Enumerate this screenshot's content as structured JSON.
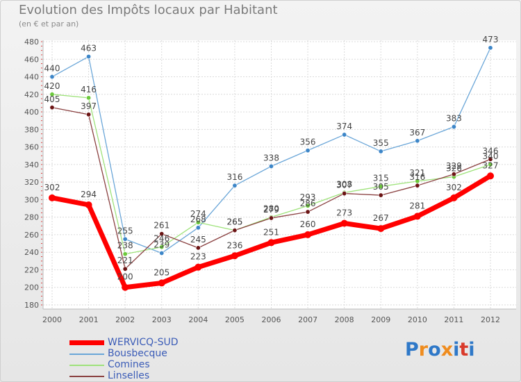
{
  "title": "Evolution des Impôts locaux par Habitant",
  "subtitle": "(en € et par an)",
  "logo": {
    "text": "Proxiti",
    "colors": [
      "#2e78c8",
      "#ef8c1e",
      "#2e78c8",
      "#ef8c1e",
      "#2e78c8",
      "#d93a2b",
      "#2e78c8"
    ]
  },
  "chart_data": {
    "type": "line",
    "title": "Evolution des Impôts locaux par Habitant",
    "subtitle": "(en € et par an)",
    "categories": [
      "2000",
      "2001",
      "2002",
      "2003",
      "2004",
      "2005",
      "2006",
      "2007",
      "2008",
      "2009",
      "2010",
      "2011",
      "2012"
    ],
    "ylim": [
      180,
      480
    ],
    "yticks": [
      180,
      200,
      220,
      240,
      260,
      280,
      300,
      320,
      340,
      360,
      380,
      400,
      420,
      440,
      460,
      480
    ],
    "grid": true,
    "series": [
      {
        "name": "Bousbecque",
        "color": "#6aa6d8",
        "marker": "#3d86c8",
        "width": 1.3,
        "values": [
          440,
          463,
          255,
          239,
          268,
          316,
          338,
          356,
          374,
          355,
          367,
          383,
          473
        ]
      },
      {
        "name": "Comines",
        "color": "#9ee27a",
        "marker": "#6cc93c",
        "width": 1.3,
        "values": [
          420,
          416,
          238,
          246,
          274,
          265,
          280,
          293,
          308,
          315,
          321,
          326,
          340
        ]
      },
      {
        "name": "Linselles",
        "color": "#8a4040",
        "marker": "#6b1414",
        "width": 1.3,
        "values": [
          405,
          397,
          221,
          261,
          245,
          265,
          279,
          286,
          307,
          305,
          316,
          329,
          346
        ]
      },
      {
        "name": "WERVICQ-SUD",
        "color": "#ff0000",
        "marker": "#ff0000",
        "width": 7,
        "values": [
          302,
          294,
          200,
          205,
          223,
          236,
          251,
          260,
          273,
          267,
          281,
          302,
          327
        ]
      }
    ],
    "legend": [
      "WERVICQ-SUD",
      "Bousbecque",
      "Comines",
      "Linselles"
    ],
    "legend_position": "bottom-left"
  }
}
